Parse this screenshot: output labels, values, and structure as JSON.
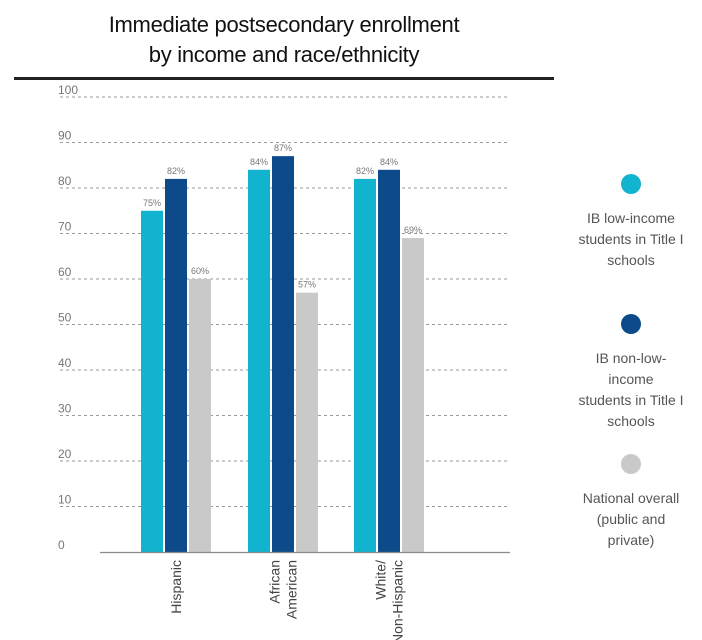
{
  "chart_data": {
    "type": "bar",
    "title_lines": [
      "Immediate postsecondary enrollment",
      "by income and race/ethnicity"
    ],
    "xlabel": "",
    "ylabel": "",
    "ylim": [
      0,
      100
    ],
    "yticks": [
      0,
      10,
      20,
      30,
      40,
      50,
      60,
      70,
      80,
      90,
      100
    ],
    "grid": true,
    "legend_position": "right",
    "categories": [
      [
        "Hispanic"
      ],
      [
        "African",
        "American"
      ],
      [
        "White/",
        "Non-Hispanic"
      ]
    ],
    "series": [
      {
        "name": "IB low-income students in Title I schools",
        "label_lines": [
          "IB low-income",
          "students in Title I",
          "schools"
        ],
        "color": "#11B3CF",
        "values": [
          75,
          84,
          82
        ],
        "value_labels": [
          "75%",
          "84%",
          "82%"
        ]
      },
      {
        "name": "IB non-low-income students in Title I schools",
        "label_lines": [
          "IB non-low-income",
          "students in Title I",
          "schools"
        ],
        "color": "#0C4A8A",
        "values": [
          82,
          87,
          84
        ],
        "value_labels": [
          "82%",
          "87%",
          "84%"
        ]
      },
      {
        "name": "National overall (public and private)",
        "label_lines": [
          "National overall",
          "(public and private)"
        ],
        "color": "#C9C9C9",
        "values": [
          60,
          57,
          69
        ],
        "value_labels": [
          "60%",
          "57%",
          "69%"
        ]
      }
    ]
  }
}
